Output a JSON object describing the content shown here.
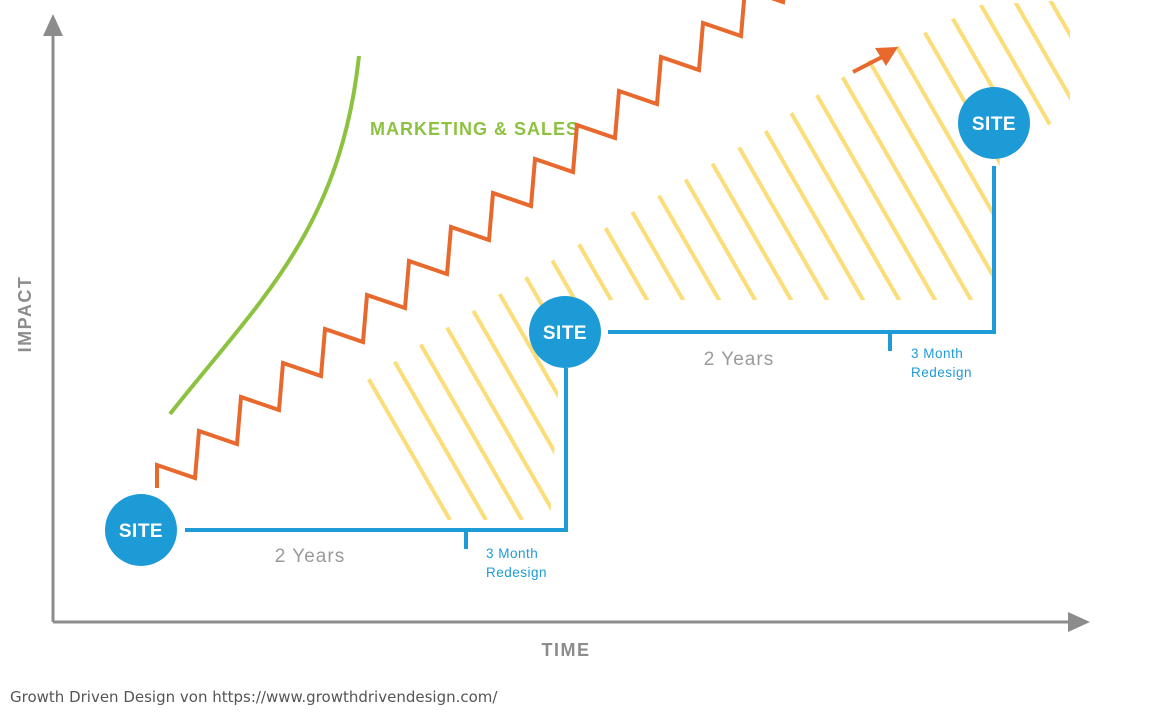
{
  "axes": {
    "y_label": "IMPACT",
    "x_label": "TIME"
  },
  "marketing_label": "MARKETING & SALES",
  "site_nodes": [
    {
      "label": "SITE"
    },
    {
      "label": "SITE"
    },
    {
      "label": "SITE"
    }
  ],
  "periods": [
    {
      "duration": "2 Years",
      "redesign_line1": "3 Month",
      "redesign_line2": "Redesign"
    },
    {
      "duration": "2 Years",
      "redesign_line1": "3 Month",
      "redesign_line2": "Redesign"
    }
  ],
  "caption": "Growth Driven Design von https://www.growthdrivendesign.com/",
  "colors": {
    "axis": "#8c8c8c",
    "site": "#1d9bd7",
    "growth": "#e8692d",
    "marketing": "#8cc23f",
    "hatch": "#fbdd7a",
    "years_text": "#9a9a9a",
    "caption_text": "#555555"
  }
}
